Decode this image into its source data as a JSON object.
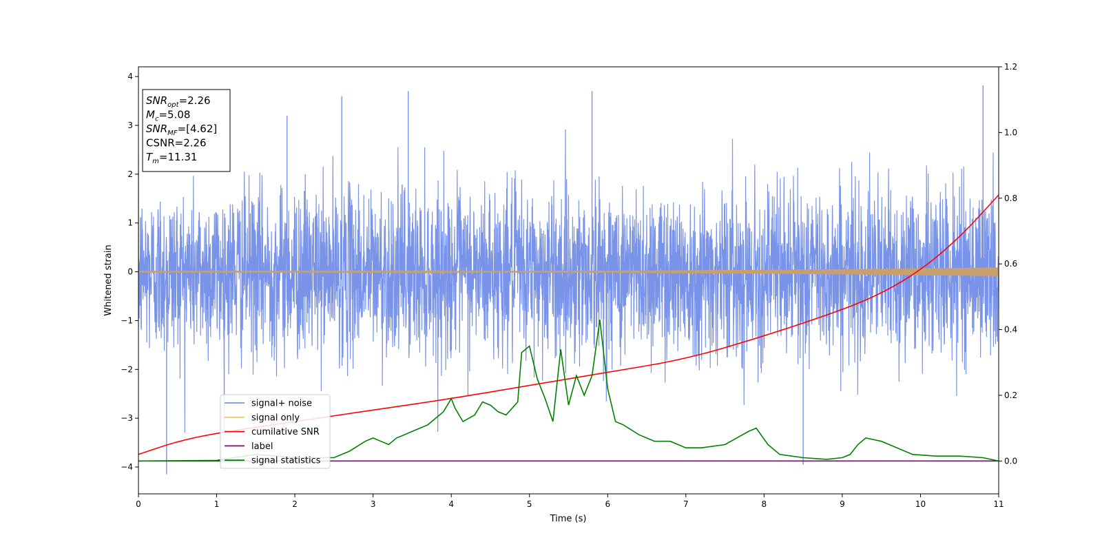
{
  "chart_data": {
    "type": "line",
    "xlabel": "Time (s)",
    "ylabel": "Whitened strain",
    "xlim": [
      0,
      11
    ],
    "ylim_left": [
      -4.55,
      4.2
    ],
    "ylim_right": [
      -0.1,
      1.2
    ],
    "x_ticks": [
      0,
      1,
      2,
      3,
      4,
      5,
      6,
      7,
      8,
      9,
      10,
      11
    ],
    "y_ticks_left": [
      4,
      3,
      2,
      1,
      0,
      -1,
      -2,
      -3,
      -4
    ],
    "y_ticks_right": [
      1.2,
      1.0,
      0.8,
      0.6,
      0.4,
      0.2,
      0.0
    ],
    "grid": false,
    "legend_position": "lower-left",
    "annotation": {
      "lines": [
        {
          "sym": "SNR",
          "sub": "opt",
          "value": "=2.26"
        },
        {
          "sym": "M",
          "sub": "c",
          "value": "=5.08"
        },
        {
          "sym": "SNR",
          "sub": "MF",
          "value": "=[4.62]"
        },
        {
          "sym": "",
          "sub": "",
          "value": "CSNR=2.26"
        },
        {
          "sym": "T",
          "sub": "m",
          "value": "=11.31"
        }
      ]
    },
    "series": [
      {
        "name": "signal+ noise",
        "axis": "left",
        "color": "#7893e8",
        "kind": "noise",
        "approx_range": [
          -4.15,
          3.82
        ],
        "peaks": [
          [
            0.36,
            -4.15
          ],
          [
            1.9,
            3.2
          ],
          [
            2.6,
            3.6
          ],
          [
            3.45,
            3.7
          ],
          [
            5.8,
            3.7
          ],
          [
            8.5,
            -3.95
          ],
          [
            10.8,
            3.82
          ]
        ]
      },
      {
        "name": "signal only",
        "axis": "left",
        "color": "#f5c66b",
        "kind": "chirp",
        "amplitude_start": 0.01,
        "amplitude_end": 0.09
      },
      {
        "name": "cumilative SNR",
        "axis": "right",
        "color": "#ff0000",
        "x": [
          0,
          0.5,
          1,
          2,
          3,
          4,
          5,
          6,
          7,
          8,
          9,
          9.5,
          10,
          10.5,
          11
        ],
        "values": [
          0.02,
          0.06,
          0.085,
          0.12,
          0.155,
          0.19,
          0.23,
          0.27,
          0.31,
          0.38,
          0.46,
          0.51,
          0.58,
          0.68,
          0.81
        ]
      },
      {
        "name": "label",
        "axis": "right",
        "color": "#800080",
        "x": [
          0,
          11
        ],
        "values": [
          0.0,
          0.0
        ]
      },
      {
        "name": "signal statistics",
        "axis": "right",
        "color": "#008000",
        "x": [
          0,
          1.0,
          1.5,
          2.0,
          2.5,
          2.7,
          2.9,
          3.0,
          3.1,
          3.2,
          3.3,
          3.4,
          3.5,
          3.6,
          3.7,
          3.8,
          3.9,
          4.0,
          4.05,
          4.15,
          4.3,
          4.4,
          4.5,
          4.6,
          4.7,
          4.85,
          4.9,
          5.0,
          5.1,
          5.2,
          5.3,
          5.4,
          5.5,
          5.6,
          5.7,
          5.8,
          5.9,
          6.0,
          6.1,
          6.2,
          6.4,
          6.6,
          6.8,
          7.0,
          7.2,
          7.5,
          7.8,
          7.9,
          8.05,
          8.2,
          8.5,
          8.8,
          9.0,
          9.1,
          9.2,
          9.3,
          9.5,
          9.7,
          9.9,
          10.2,
          10.5,
          10.8,
          11.0
        ],
        "values": [
          0.0,
          0.002,
          0.02,
          0.01,
          0.01,
          0.03,
          0.06,
          0.07,
          0.06,
          0.05,
          0.07,
          0.08,
          0.09,
          0.1,
          0.11,
          0.13,
          0.15,
          0.19,
          0.16,
          0.12,
          0.14,
          0.18,
          0.17,
          0.15,
          0.14,
          0.18,
          0.33,
          0.35,
          0.25,
          0.19,
          0.12,
          0.34,
          0.17,
          0.26,
          0.2,
          0.26,
          0.43,
          0.22,
          0.12,
          0.11,
          0.08,
          0.06,
          0.06,
          0.04,
          0.04,
          0.05,
          0.09,
          0.1,
          0.05,
          0.02,
          0.01,
          0.005,
          0.01,
          0.02,
          0.05,
          0.07,
          0.06,
          0.04,
          0.02,
          0.015,
          0.015,
          0.01,
          0.0
        ]
      }
    ]
  }
}
